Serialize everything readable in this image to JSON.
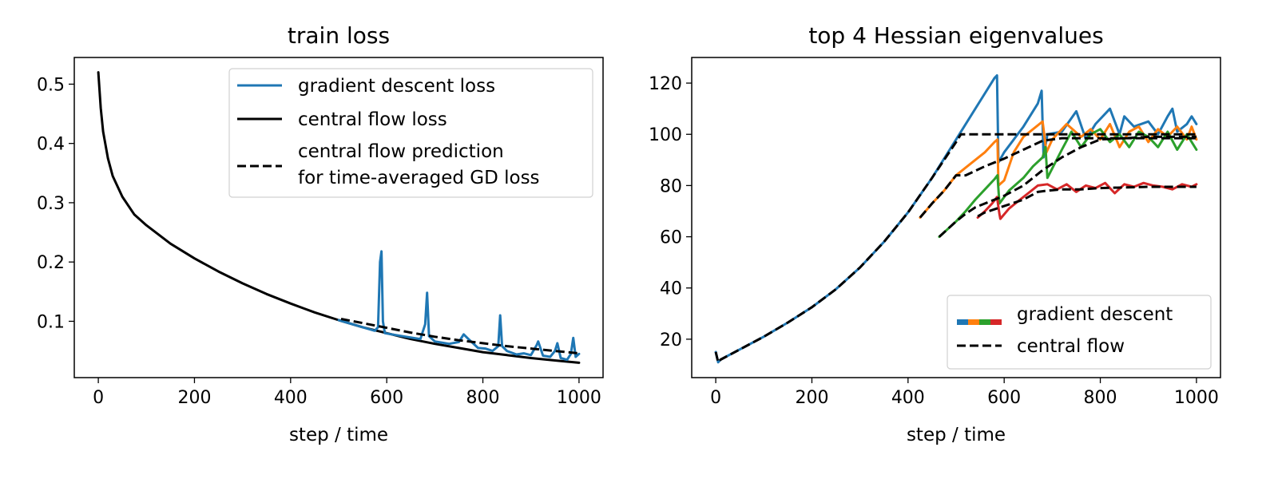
{
  "colors": {
    "gd": "#1f77b4",
    "cf": "#000000",
    "eig": [
      "#1f77b4",
      "#ff7f0e",
      "#2ca02c",
      "#d62728"
    ]
  },
  "chart_data": [
    {
      "type": "line",
      "title": "train loss",
      "xlabel": "step / time",
      "ylabel": "",
      "xlim": [
        -50,
        1050
      ],
      "ylim": [
        0.005,
        0.545
      ],
      "xticks": [
        0,
        200,
        400,
        600,
        800,
        1000
      ],
      "yticks": [
        0.1,
        0.2,
        0.3,
        0.4,
        0.5
      ],
      "xtick_labels": [
        "0",
        "200",
        "400",
        "600",
        "800",
        "1000"
      ],
      "ytick_labels": [
        "0.1",
        "0.2",
        "0.3",
        "0.4",
        "0.5"
      ],
      "legend": {
        "position": "top-right",
        "entries": [
          {
            "label": "gradient descent loss",
            "lines": [
              "gradient descent loss"
            ],
            "style": "solid",
            "color": "#1f77b4"
          },
          {
            "label": "central flow loss",
            "lines": [
              "central flow loss"
            ],
            "style": "solid",
            "color": "#000000"
          },
          {
            "label": "central flow prediction for time-averaged GD loss",
            "lines": [
              "central flow prediction",
              "for time-averaged GD loss"
            ],
            "style": "dashed",
            "color": "#000000"
          }
        ]
      },
      "series": [
        {
          "name": "central flow loss",
          "style": "solid",
          "color": "#000000",
          "x": [
            0,
            5,
            10,
            20,
            30,
            50,
            75,
            100,
            150,
            200,
            250,
            300,
            350,
            400,
            450,
            500,
            550,
            600,
            650,
            700,
            750,
            800,
            850,
            900,
            950,
            1000
          ],
          "y": [
            0.52,
            0.46,
            0.42,
            0.375,
            0.345,
            0.31,
            0.28,
            0.262,
            0.231,
            0.206,
            0.184,
            0.164,
            0.146,
            0.13,
            0.115,
            0.102,
            0.09,
            0.08,
            0.07,
            0.062,
            0.055,
            0.048,
            0.043,
            0.038,
            0.034,
            0.03
          ]
        },
        {
          "name": "gradient descent loss",
          "style": "solid",
          "color": "#1f77b4",
          "x": [
            500,
            550,
            575,
            582,
            586,
            589,
            592,
            596,
            610,
            640,
            670,
            680,
            684,
            688,
            700,
            730,
            750,
            760,
            770,
            790,
            805,
            820,
            832,
            836,
            840,
            850,
            870,
            885,
            900,
            912,
            915,
            925,
            940,
            950,
            955,
            962,
            975,
            983,
            988,
            993,
            1000
          ],
          "y": [
            0.102,
            0.09,
            0.084,
            0.09,
            0.2,
            0.218,
            0.1,
            0.08,
            0.078,
            0.074,
            0.07,
            0.095,
            0.148,
            0.075,
            0.066,
            0.062,
            0.065,
            0.078,
            0.07,
            0.055,
            0.054,
            0.05,
            0.058,
            0.11,
            0.058,
            0.05,
            0.044,
            0.046,
            0.043,
            0.06,
            0.066,
            0.042,
            0.04,
            0.05,
            0.063,
            0.038,
            0.035,
            0.045,
            0.072,
            0.04,
            0.045
          ]
        },
        {
          "name": "central flow prediction for time-averaged GD loss",
          "style": "dashed",
          "color": "#000000",
          "x": [
            505,
            550,
            600,
            650,
            700,
            750,
            800,
            850,
            900,
            950,
            1000
          ],
          "y": [
            0.104,
            0.097,
            0.089,
            0.081,
            0.074,
            0.068,
            0.063,
            0.058,
            0.054,
            0.05,
            0.046
          ]
        }
      ]
    },
    {
      "type": "line",
      "title": "top 4 Hessian eigenvalues",
      "xlabel": "step / time",
      "ylabel": "",
      "xlim": [
        -50,
        1050
      ],
      "ylim": [
        5,
        130
      ],
      "xticks": [
        0,
        200,
        400,
        600,
        800,
        1000
      ],
      "yticks": [
        20,
        40,
        60,
        80,
        100,
        120
      ],
      "xtick_labels": [
        "0",
        "200",
        "400",
        "600",
        "800",
        "1000"
      ],
      "ytick_labels": [
        "20",
        "40",
        "60",
        "80",
        "100",
        "120"
      ],
      "legend": {
        "position": "bottom-right",
        "entries": [
          {
            "label": "gradient descent",
            "style": "multicolor",
            "colors": [
              "#1f77b4",
              "#ff7f0e",
              "#2ca02c",
              "#d62728"
            ]
          },
          {
            "label": "central flow",
            "style": "dashed",
            "color": "#000000"
          }
        ]
      },
      "gradient_descent": [
        {
          "color": "#1f77b4",
          "x": [
            0,
            5,
            10,
            30,
            50,
            100,
            150,
            200,
            250,
            300,
            350,
            400,
            450,
            500,
            550,
            580,
            585,
            588,
            600,
            640,
            670,
            678,
            682,
            690,
            720,
            750,
            770,
            790,
            820,
            840,
            850,
            870,
            900,
            920,
            940,
            950,
            960,
            980,
            990,
            1000
          ],
          "y": [
            15,
            11,
            12,
            14,
            16,
            21,
            26.5,
            32.5,
            39.5,
            48,
            58,
            69.5,
            83,
            98,
            113,
            122,
            123,
            89,
            93,
            103,
            112,
            117,
            91,
            100,
            101,
            109,
            98,
            104,
            110,
            100,
            107,
            103,
            105,
            100,
            107,
            110,
            101,
            104,
            107,
            104
          ]
        },
        {
          "color": "#ff7f0e",
          "x": [
            425,
            450,
            475,
            500,
            530,
            560,
            580,
            586,
            588,
            600,
            620,
            640,
            660,
            680,
            688,
            700,
            730,
            760,
            780,
            800,
            820,
            840,
            860,
            880,
            900,
            920,
            940,
            960,
            980,
            990,
            1000
          ],
          "y": [
            67.5,
            73,
            78,
            84,
            88.5,
            93,
            97,
            98,
            80,
            82,
            93,
            99,
            102,
            105,
            93,
            98,
            104,
            99,
            102,
            98,
            104,
            95,
            101,
            103,
            97,
            102,
            99,
            103,
            98,
            103,
            98
          ]
        },
        {
          "color": "#2ca02c",
          "x": [
            465,
            500,
            520,
            540,
            560,
            580,
            586,
            590,
            610,
            640,
            660,
            680,
            686,
            690,
            720,
            740,
            760,
            780,
            800,
            820,
            840,
            860,
            880,
            900,
            920,
            940,
            960,
            980,
            1000
          ],
          "y": [
            60,
            66,
            70,
            74.5,
            78.5,
            82.5,
            84,
            73,
            78,
            83,
            87.5,
            91,
            95,
            83,
            94,
            101,
            95,
            100,
            102,
            97,
            100,
            95,
            101,
            99,
            95,
            101,
            94,
            100,
            94
          ]
        },
        {
          "color": "#d62728",
          "x": [
            545,
            560,
            575,
            585,
            590,
            592,
            610,
            630,
            650,
            670,
            690,
            710,
            730,
            750,
            770,
            790,
            810,
            830,
            850,
            870,
            890,
            910,
            930,
            950,
            970,
            990,
            1000
          ],
          "y": [
            67.5,
            70,
            73,
            75.5,
            69,
            67,
            71,
            74,
            77,
            80,
            80.5,
            78.5,
            80.5,
            77.5,
            80,
            79,
            81,
            77,
            80.5,
            79.5,
            81,
            80,
            79.5,
            78.5,
            80.5,
            79.5,
            80.5
          ]
        }
      ],
      "central_flow": [
        {
          "x": [
            0,
            5,
            10,
            30,
            50,
            100,
            150,
            200,
            250,
            300,
            350,
            400,
            450,
            500,
            510,
            600,
            700,
            800,
            900,
            1000
          ],
          "y": [
            15,
            11,
            12,
            14,
            16,
            21,
            26.5,
            32.5,
            39.5,
            48,
            58,
            69.5,
            83,
            97,
            100,
            100,
            100,
            100,
            100,
            100
          ]
        },
        {
          "x": [
            425,
            450,
            475,
            500,
            520,
            560,
            600,
            640,
            680,
            720,
            760,
            800,
            900,
            1000
          ],
          "y": [
            67.5,
            73,
            78,
            84,
            84,
            87.5,
            90.5,
            94,
            97.5,
            98.5,
            98.5,
            98.5,
            98.5,
            98.5
          ]
        },
        {
          "x": [
            465,
            500,
            520,
            540,
            560,
            600,
            640,
            680,
            720,
            760,
            800,
            900,
            1000
          ],
          "y": [
            60,
            66,
            69,
            71.5,
            73,
            76,
            80,
            86,
            91,
            95,
            98,
            99,
            99
          ]
        },
        {
          "x": [
            545,
            560,
            600,
            640,
            670,
            690,
            720,
            760,
            800,
            900,
            1000
          ],
          "y": [
            68,
            69.5,
            72,
            74.5,
            77.5,
            78,
            78.5,
            78.5,
            79,
            79.5,
            79.5
          ]
        }
      ]
    }
  ]
}
